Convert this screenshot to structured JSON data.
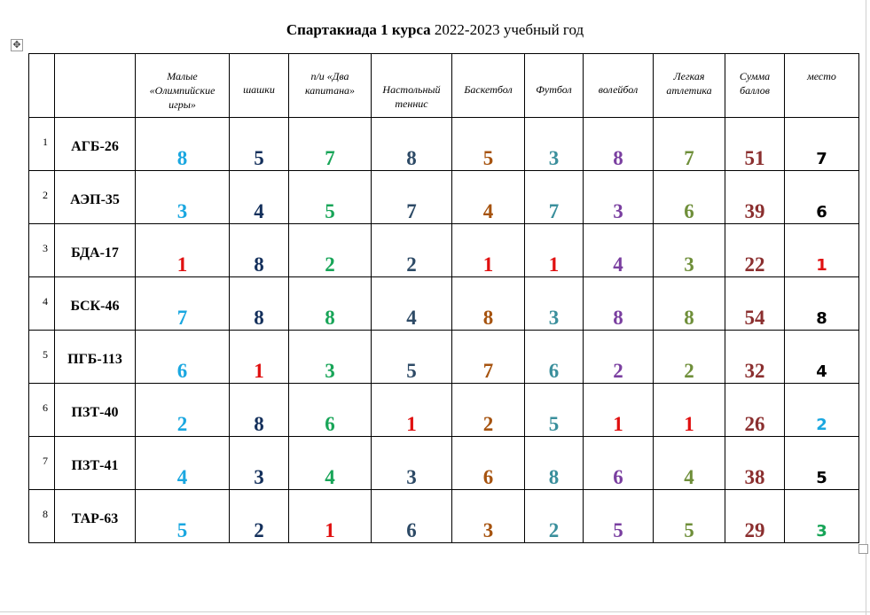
{
  "title": {
    "bold": "Спартакиада 1  курса",
    "normal": "2022-2023 учебный год"
  },
  "headers": [
    {
      "text": "",
      "mid": false
    },
    {
      "text": "",
      "mid": false
    },
    {
      "text": "Малые «Олимпийские игры»",
      "mid": false
    },
    {
      "text": "шашки",
      "mid": true
    },
    {
      "text": "п/и «Два капитана»",
      "mid": false
    },
    {
      "text": "Настольный теннис",
      "mid": true
    },
    {
      "text": "Баскетбол",
      "mid": true
    },
    {
      "text": "Футбол",
      "mid": true
    },
    {
      "text": "волейбол",
      "mid": true
    },
    {
      "text": "Легкая атлетика",
      "mid": false
    },
    {
      "text": "Сумма баллов",
      "mid": false
    },
    {
      "text": "место",
      "mid": false
    }
  ],
  "column_colors": [
    "#1aa7e0",
    "#14305c",
    "#18a558",
    "#2d4a66",
    "#a6530f",
    "#3a8f9c",
    "#7a3fa0",
    "#6f8f3a",
    "#8b2f2f"
  ],
  "place_colors": {
    "1": "#e01010",
    "2": "#1aa7e0",
    "3": "#18a558",
    "other": "#000000"
  },
  "low_value_color": "#e01010",
  "rows": [
    {
      "n": "1",
      "group": "АГБ-26",
      "values": [
        "8",
        "5",
        "7",
        "8",
        "5",
        "3",
        "8",
        "7",
        "51"
      ],
      "place": "7"
    },
    {
      "n": "2",
      "group": "АЭП-35",
      "values": [
        "3",
        "4",
        "5",
        "7",
        "4",
        "7",
        "3",
        "6",
        "39"
      ],
      "place": "6"
    },
    {
      "n": "3",
      "group": "БДА-17",
      "values": [
        "1",
        "8",
        "2",
        "2",
        "1",
        "1",
        "4",
        "3",
        "22"
      ],
      "place": "1"
    },
    {
      "n": "4",
      "group": "БСК-46",
      "values": [
        "7",
        "8",
        "8",
        "4",
        "8",
        "3",
        "8",
        "8",
        "54"
      ],
      "place": "8"
    },
    {
      "n": "5",
      "group": "ПГБ-113",
      "values": [
        "6",
        "1",
        "3",
        "5",
        "7",
        "6",
        "2",
        "2",
        "32"
      ],
      "place": "4"
    },
    {
      "n": "6",
      "group": "ПЗТ-40",
      "values": [
        "2",
        "8",
        "6",
        "1",
        "2",
        "5",
        "1",
        "1",
        "26"
      ],
      "place": "2"
    },
    {
      "n": "7",
      "group": "ПЗТ-41",
      "values": [
        "4",
        "3",
        "4",
        "3",
        "6",
        "8",
        "6",
        "4",
        "38"
      ],
      "place": "5"
    },
    {
      "n": "8",
      "group": "ТАР-63",
      "values": [
        "5",
        "2",
        "1",
        "6",
        "3",
        "2",
        "5",
        "5",
        "29"
      ],
      "place": "3"
    }
  ]
}
